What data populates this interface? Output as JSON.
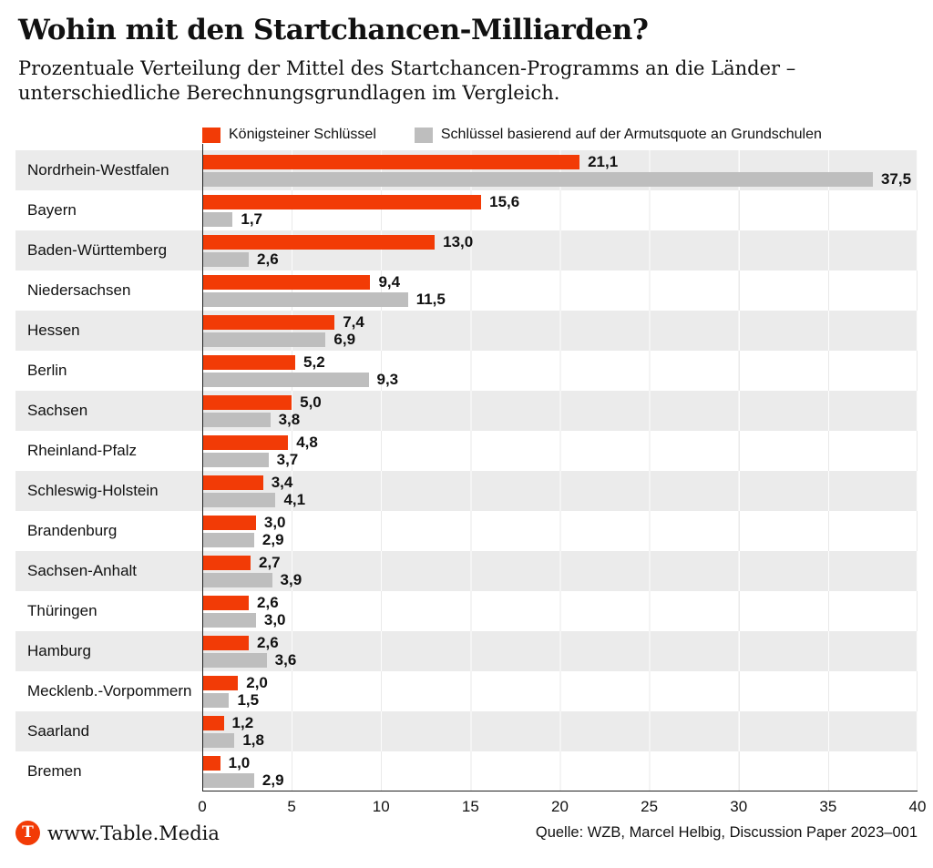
{
  "header": {
    "title": "Wohin mit den Startchancen-Milliarden?",
    "subtitle": "Prozentuale Verteilung der Mittel des Startchancen-Programms an die Länder – unterschiedliche Berechnungsgrundlagen im Vergleich."
  },
  "legend": {
    "items": [
      {
        "label": "Königsteiner Schlüssel",
        "color": "#F23B06"
      },
      {
        "label": "Schlüssel basierend auf der Armutsquote an Grundschulen",
        "color": "#BEBEBE"
      }
    ]
  },
  "chart_data": {
    "type": "bar",
    "orientation": "horizontal",
    "title": "Wohin mit den Startchancen-Milliarden?",
    "xlabel": "",
    "ylabel": "",
    "xlim": [
      0,
      40
    ],
    "x_ticks": [
      0,
      5,
      10,
      15,
      20,
      25,
      30,
      35,
      40
    ],
    "grid": true,
    "legend_position": "top",
    "categories": [
      "Nordrhein-Westfalen",
      "Bayern",
      "Baden-Württemberg",
      "Niedersachsen",
      "Hessen",
      "Berlin",
      "Sachsen",
      "Rheinland-Pfalz",
      "Schleswig-Holstein",
      "Brandenburg",
      "Sachsen-Anhalt",
      "Thüringen",
      "Hamburg",
      "Mecklenb.-Vorpommern",
      "Saarland",
      "Bremen"
    ],
    "series": [
      {
        "name": "Königsteiner Schlüssel",
        "color": "#F23B06",
        "values": [
          21.1,
          15.6,
          13.0,
          9.4,
          7.4,
          5.2,
          5.0,
          4.8,
          3.4,
          3.0,
          2.7,
          2.6,
          2.6,
          2.0,
          1.2,
          1.0
        ],
        "labels": [
          "21,1",
          "15,6",
          "13,0",
          "9,4",
          "7,4",
          "5,2",
          "5,0",
          "4,8",
          "3,4",
          "3,0",
          "2,7",
          "2,6",
          "2,6",
          "2,0",
          "1,2",
          "1,0"
        ]
      },
      {
        "name": "Schlüssel basierend auf der Armutsquote an Grundschulen",
        "color": "#BEBEBE",
        "values": [
          37.5,
          1.7,
          2.6,
          11.5,
          6.9,
          9.3,
          3.8,
          3.7,
          4.1,
          2.9,
          3.9,
          3.0,
          3.6,
          1.5,
          1.8,
          2.9
        ],
        "labels": [
          "37,5",
          "1,7",
          "2,6",
          "11,5",
          "6,9",
          "9,3",
          "3,8",
          "3,7",
          "4,1",
          "2,9",
          "3,9",
          "3,0",
          "3,6",
          "1,5",
          "1,8",
          "2,9"
        ]
      }
    ],
    "row_stripe_colors": [
      "#EBEBEB",
      "#FFFFFF"
    ]
  },
  "footer": {
    "logo_letter": "T",
    "brand": "www.Table.Media",
    "source": "Quelle: WZB, Marcel Helbig, Discussion Paper 2023–001"
  }
}
